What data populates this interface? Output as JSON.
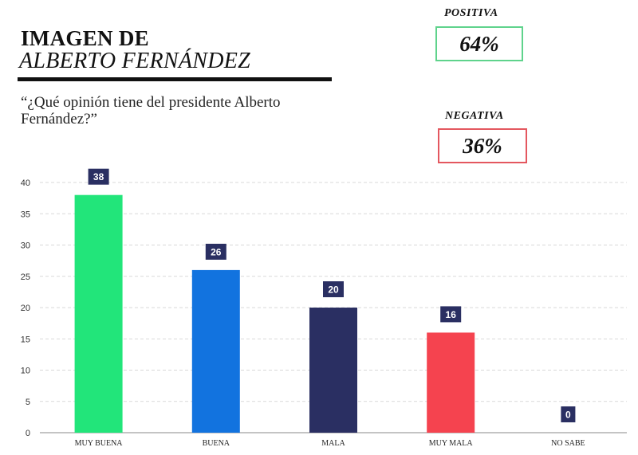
{
  "header": {
    "title_line1": "IMAGEN DE",
    "title_line2": "ALBERTO FERNÁNDEZ",
    "question": "“¿Qué opinión tiene del presidente Alberto Fernández?”"
  },
  "summary": {
    "positive_label": "POSITIVA",
    "positive_value": "64%",
    "negative_label": "NEGATIVA",
    "negative_value": "36%",
    "colors": {
      "positive": "#5fd38c",
      "negative": "#e4575f"
    }
  },
  "chart_data": {
    "type": "bar",
    "categories": [
      "MUY BUENA",
      "BUENA",
      "MALA",
      "MUY MALA",
      "NO SABE"
    ],
    "values": [
      38,
      26,
      20,
      16,
      0
    ],
    "colors": [
      "#22e57a",
      "#1273df",
      "#2a2f62",
      "#f5434f",
      "#2a2f62"
    ],
    "label_bg": "#2a2f62",
    "title": "",
    "xlabel": "",
    "ylabel": "",
    "ylim": [
      0,
      40
    ],
    "yticks": [
      0,
      5,
      10,
      15,
      20,
      25,
      30,
      35,
      40
    ],
    "grid": true
  }
}
